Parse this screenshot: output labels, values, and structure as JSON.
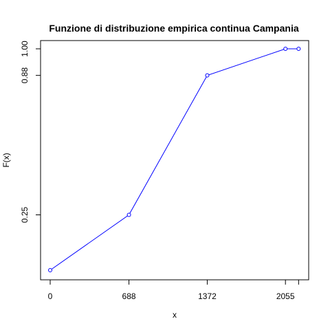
{
  "chart_data": {
    "type": "line",
    "title": "Funzione di distribuzione empirica continua Campania",
    "xlabel": "x",
    "ylabel": "F(x)",
    "xlim": [
      0,
      2180
    ],
    "ylim": [
      0,
      1
    ],
    "x_ticks": [
      0,
      688,
      1372,
      2055
    ],
    "x_tick_labels": [
      "0",
      "688",
      "1372",
      "2055"
    ],
    "y_ticks": [
      0.25,
      0.88,
      1.0
    ],
    "y_tick_labels": [
      "0.25",
      "0.88",
      "1.00"
    ],
    "series": [
      {
        "color": "#0000ff",
        "marker": "open-circle",
        "points": [
          {
            "x": 0,
            "y": 0.0
          },
          {
            "x": 688,
            "y": 0.25
          },
          {
            "x": 1372,
            "y": 0.88
          },
          {
            "x": 2055,
            "y": 1.0
          },
          {
            "x": 2170,
            "y": 1.0
          }
        ]
      }
    ],
    "grid": false,
    "box": true
  }
}
